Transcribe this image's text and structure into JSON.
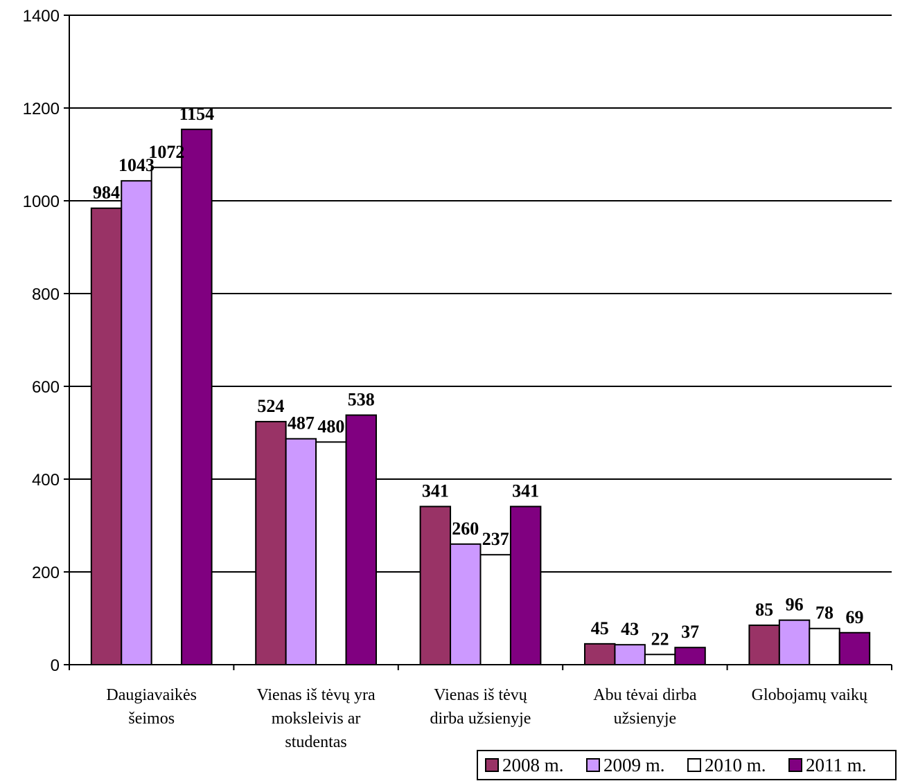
{
  "chart_data": {
    "type": "bar",
    "title": "",
    "xlabel": "",
    "ylabel": "",
    "ylim": [
      0,
      1400
    ],
    "yticks": [
      0,
      200,
      400,
      600,
      800,
      1000,
      1200,
      1400
    ],
    "grid": true,
    "legend_position": "bottom-right",
    "categories": [
      [
        "Daugiavaikės",
        "šeimos"
      ],
      [
        "Vienas iš tėvų yra",
        "moksleivis ar",
        "studentas"
      ],
      [
        "Vienas iš tėvų",
        "dirba užsienyje"
      ],
      [
        "Abu tėvai dirba",
        "užsienyje"
      ],
      [
        "Globojamų vaikų"
      ]
    ],
    "series": [
      {
        "name": "2008 m.",
        "color": "#993366",
        "values": [
          984,
          524,
          341,
          45,
          85
        ]
      },
      {
        "name": "2009 m.",
        "color": "#cc99ff",
        "values": [
          1043,
          487,
          260,
          43,
          96
        ]
      },
      {
        "name": "2010 m.",
        "color": "#ffffff",
        "values": [
          1072,
          480,
          237,
          22,
          78
        ]
      },
      {
        "name": "2011 m.",
        "color": "#800080",
        "values": [
          1154,
          538,
          341,
          37,
          69
        ]
      }
    ]
  }
}
